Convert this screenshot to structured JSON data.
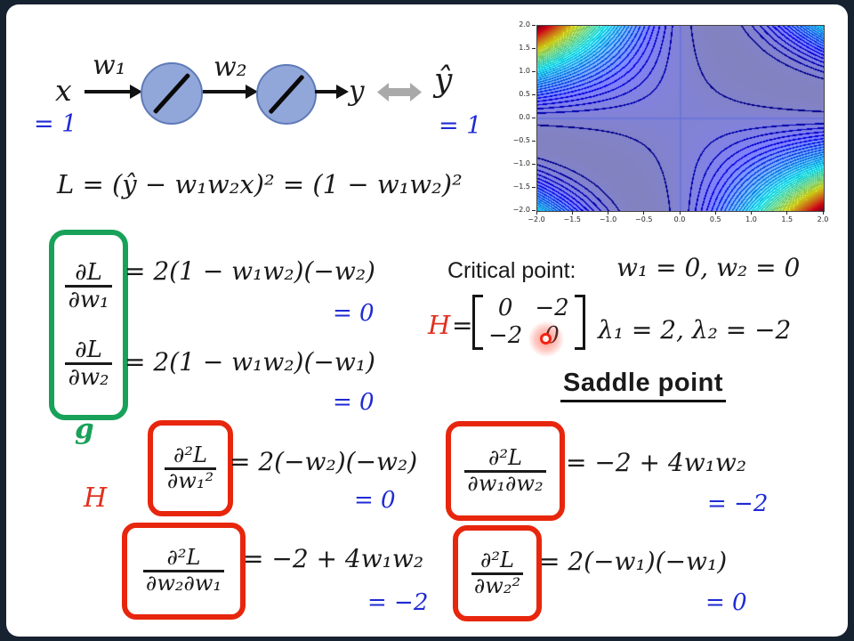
{
  "slide": {
    "network": {
      "input": "x",
      "input_value": "= 1",
      "w1": "w₁",
      "w2": "w₂",
      "output": "y",
      "target": "ŷ",
      "target_value": "= 1"
    },
    "loss": "L = (ŷ − w₁w₂x)²  = (1 − w₁w₂)²",
    "gradient": {
      "label": "g",
      "rows": [
        {
          "num": "∂L",
          "den": "∂w₁",
          "eq": "= 2(1 − w₁w₂)(−w₂)",
          "value": "= 0"
        },
        {
          "num": "∂L",
          "den": "∂w₂",
          "eq": "= 2(1 − w₁w₂)(−w₁)",
          "value": "= 0"
        }
      ]
    },
    "critical": {
      "caption": "Critical point:",
      "value": "w₁ = 0, w₂ = 0"
    },
    "hessian": {
      "label": "H",
      "equals": "=",
      "matrix": [
        [
          "0",
          "−2"
        ],
        [
          "−2",
          "0"
        ]
      ],
      "eigenvalues": "λ₁ = 2, λ₂ = −2",
      "conclusion": "Saddle point",
      "label2": "H"
    },
    "second": [
      {
        "num": "∂²L",
        "den": "∂w₁²",
        "eq": "= 2(−w₂)(−w₂)",
        "value": "= 0"
      },
      {
        "num": "∂²L",
        "den": "∂w₁∂w₂",
        "eq": "= −2 + 4w₁w₂",
        "value": "= −2"
      },
      {
        "num": "∂²L",
        "den": "∂w₂∂w₁",
        "eq": "= −2 + 4w₁w₂",
        "value": "= −2"
      },
      {
        "num": "∂²L",
        "den": "∂w₂²",
        "eq": "= 2(−w₁)(−w₁)",
        "value": "= 0"
      }
    ],
    "colors": {
      "blue_text": "#1f2ad4",
      "green_accent": "#18a159",
      "red_accent": "#e7260d",
      "laser": "#f32311",
      "neuron_fill": "#92a7d9",
      "neuron_border": "#5e7ab8",
      "gray_arrow": "#a9a9a9",
      "frame": "#172231"
    }
  },
  "chart_data": {
    "type": "contour",
    "title": "",
    "function": "L(w1, w2) = (1 − w1·w2)²",
    "xlabel": "",
    "ylabel": "",
    "x_range": [
      -2.0,
      2.0
    ],
    "y_range": [
      -2.0,
      2.0
    ],
    "x_ticks": [
      -2.0,
      -1.5,
      -1.0,
      -0.5,
      0.0,
      0.5,
      1.0,
      1.5,
      2.0
    ],
    "y_ticks": [
      -2.0,
      -1.5,
      -1.0,
      -0.5,
      0.0,
      0.5,
      1.0,
      1.5,
      2.0
    ],
    "z_min": 0,
    "z_max": 25,
    "levels": 50,
    "colormap": "jet",
    "grid": false,
    "critical_point": [
      0,
      0
    ]
  }
}
